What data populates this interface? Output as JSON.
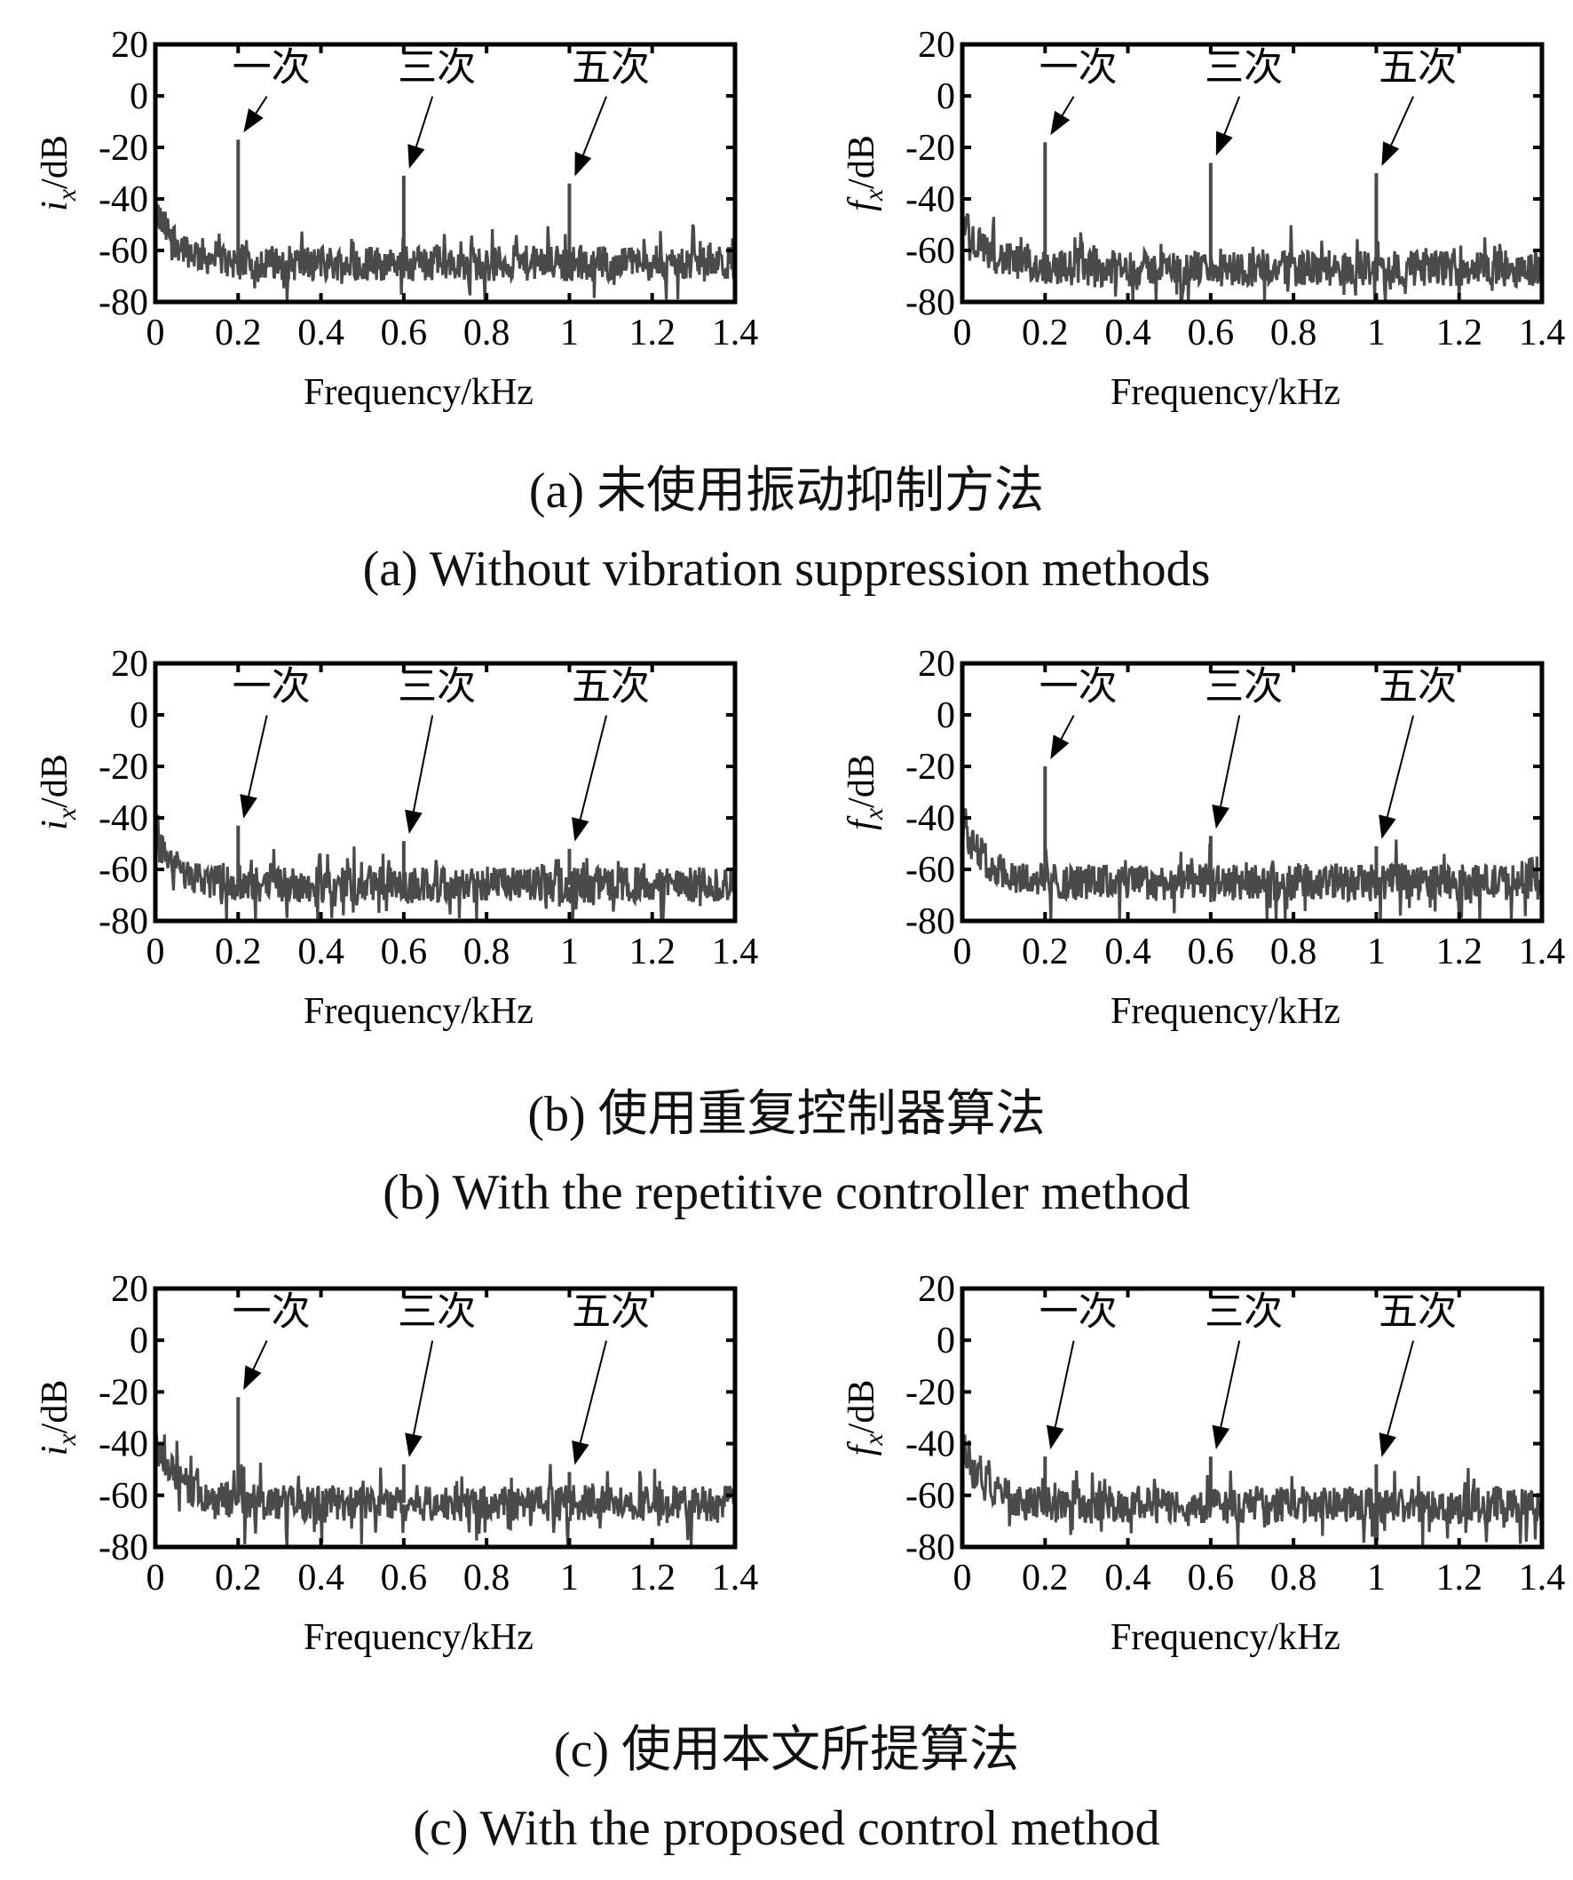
{
  "chart_data": [
    {
      "type": "line",
      "id": "a-left",
      "ylabel": {
        "var": "i",
        "sub": "x",
        "unit": "/dB"
      },
      "xlabel": "Frequency/kHz",
      "xlim": [
        0,
        1.4
      ],
      "ylim": [
        -80,
        20
      ],
      "xticks": [
        "0",
        "0.2",
        "0.4",
        "0.6",
        "0.8",
        "1",
        "1.2",
        "1.4"
      ],
      "yticks": [
        "20",
        "0",
        "-20",
        "-40",
        "-60",
        "-80"
      ],
      "noise_floor_db": -65,
      "low_freq_start_db": -45,
      "peaks": [
        {
          "label": "一次",
          "x": 0.2,
          "y": -17
        },
        {
          "label": "三次",
          "x": 0.6,
          "y": -31
        },
        {
          "label": "五次",
          "x": 1.0,
          "y": -34
        }
      ]
    },
    {
      "type": "line",
      "id": "a-right",
      "ylabel": {
        "var": "f",
        "sub": "x",
        "unit": "/dB"
      },
      "xlabel": "Frequency/kHz",
      "xlim": [
        0,
        1.4
      ],
      "ylim": [
        -80,
        20
      ],
      "xticks": [
        "0",
        "0.2",
        "0.4",
        "0.6",
        "0.8",
        "1",
        "1.2",
        "1.4"
      ],
      "yticks": [
        "20",
        "0",
        "-20",
        "-40",
        "-60",
        "-80"
      ],
      "noise_floor_db": -67,
      "low_freq_start_db": -48,
      "peaks": [
        {
          "label": "一次",
          "x": 0.2,
          "y": -18
        },
        {
          "label": "三次",
          "x": 0.6,
          "y": -26
        },
        {
          "label": "五次",
          "x": 1.0,
          "y": -30
        }
      ]
    },
    {
      "type": "line",
      "id": "b-left",
      "ylabel": {
        "var": "i",
        "sub": "x",
        "unit": "/dB"
      },
      "xlabel": "Frequency/kHz",
      "xlim": [
        0,
        1.4
      ],
      "ylim": [
        -80,
        20
      ],
      "xticks": [
        "0",
        "0.2",
        "0.4",
        "0.6",
        "0.8",
        "1",
        "1.2",
        "1.4"
      ],
      "yticks": [
        "20",
        "0",
        "-20",
        "-40",
        "-60",
        "-80"
      ],
      "noise_floor_db": -66,
      "low_freq_start_db": -48,
      "peaks": [
        {
          "label": "一次",
          "x": 0.2,
          "y": -43
        },
        {
          "label": "三次",
          "x": 0.6,
          "y": -49
        },
        {
          "label": "五次",
          "x": 1.0,
          "y": -52
        }
      ]
    },
    {
      "type": "line",
      "id": "b-right",
      "ylabel": {
        "var": "f",
        "sub": "x",
        "unit": "/dB"
      },
      "xlabel": "Frequency/kHz",
      "xlim": [
        0,
        1.4
      ],
      "ylim": [
        -80,
        20
      ],
      "xticks": [
        "0",
        "0.2",
        "0.4",
        "0.6",
        "0.8",
        "1",
        "1.2",
        "1.4"
      ],
      "yticks": [
        "20",
        "0",
        "-20",
        "-40",
        "-60",
        "-80"
      ],
      "noise_floor_db": -65,
      "low_freq_start_db": -42,
      "peaks": [
        {
          "label": "一次",
          "x": 0.2,
          "y": -20
        },
        {
          "label": "三次",
          "x": 0.6,
          "y": -47
        },
        {
          "label": "五次",
          "x": 1.0,
          "y": -51
        }
      ]
    },
    {
      "type": "line",
      "id": "c-left",
      "ylabel": {
        "var": "i",
        "sub": "x",
        "unit": "/dB"
      },
      "xlabel": "Frequency/kHz",
      "xlim": [
        0,
        1.4
      ],
      "ylim": [
        -80,
        20
      ],
      "xticks": [
        "0",
        "0.2",
        "0.4",
        "0.6",
        "0.8",
        "1",
        "1.2",
        "1.4"
      ],
      "yticks": [
        "20",
        "0",
        "-20",
        "-40",
        "-60",
        "-80"
      ],
      "noise_floor_db": -63,
      "low_freq_start_db": -40,
      "peaks": [
        {
          "label": "一次",
          "x": 0.2,
          "y": -22
        },
        {
          "label": "三次",
          "x": 0.6,
          "y": -48
        },
        {
          "label": "五次",
          "x": 1.0,
          "y": -51
        }
      ]
    },
    {
      "type": "line",
      "id": "c-right",
      "ylabel": {
        "var": "f",
        "sub": "x",
        "unit": "/dB"
      },
      "xlabel": "Frequency/kHz",
      "xlim": [
        0,
        1.4
      ],
      "ylim": [
        -80,
        20
      ],
      "xticks": [
        "0",
        "0.2",
        "0.4",
        "0.6",
        "0.8",
        "1",
        "1.2",
        "1.4"
      ],
      "yticks": [
        "20",
        "0",
        "-20",
        "-40",
        "-60",
        "-80"
      ],
      "noise_floor_db": -64,
      "low_freq_start_db": -40,
      "peaks": [
        {
          "label": "一次",
          "x": 0.2,
          "y": -45
        },
        {
          "label": "三次",
          "x": 0.6,
          "y": -45
        },
        {
          "label": "五次",
          "x": 1.0,
          "y": -48
        }
      ]
    }
  ],
  "captions": {
    "a_cn": "(a) 未使用振动抑制方法",
    "a_en": "(a) Without vibration suppression methods",
    "b_cn": "(b) 使用重复控制器算法",
    "b_en": "(b) With the repetitive controller method",
    "c_cn": "(c) 使用本文所提算法",
    "c_en": "(c) With the proposed control method"
  },
  "colors": {
    "trace": "#4a4a4a",
    "axis": "#000000"
  }
}
